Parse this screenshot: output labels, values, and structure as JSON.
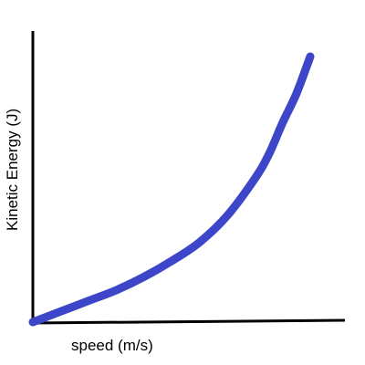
{
  "chart_data": {
    "type": "line",
    "title": "",
    "xlabel": "speed (m/s)",
    "ylabel": "Kinetic Energy (J)",
    "grid": false,
    "x_ticks": [],
    "y_ticks": [],
    "xlim": [
      0,
      1
    ],
    "ylim": [
      0,
      1
    ],
    "series": [
      {
        "x": [
          0,
          0.1,
          0.2,
          0.3,
          0.4,
          0.5,
          0.6,
          0.7,
          0.8,
          0.85,
          0.9,
          0.95,
          1.0
        ],
        "y": [
          0,
          0.04,
          0.08,
          0.12,
          0.17,
          0.23,
          0.3,
          0.4,
          0.54,
          0.63,
          0.75,
          0.86,
          1.0
        ]
      }
    ]
  },
  "colors": {
    "curve": "#3d45c9",
    "axes": "#000000"
  }
}
